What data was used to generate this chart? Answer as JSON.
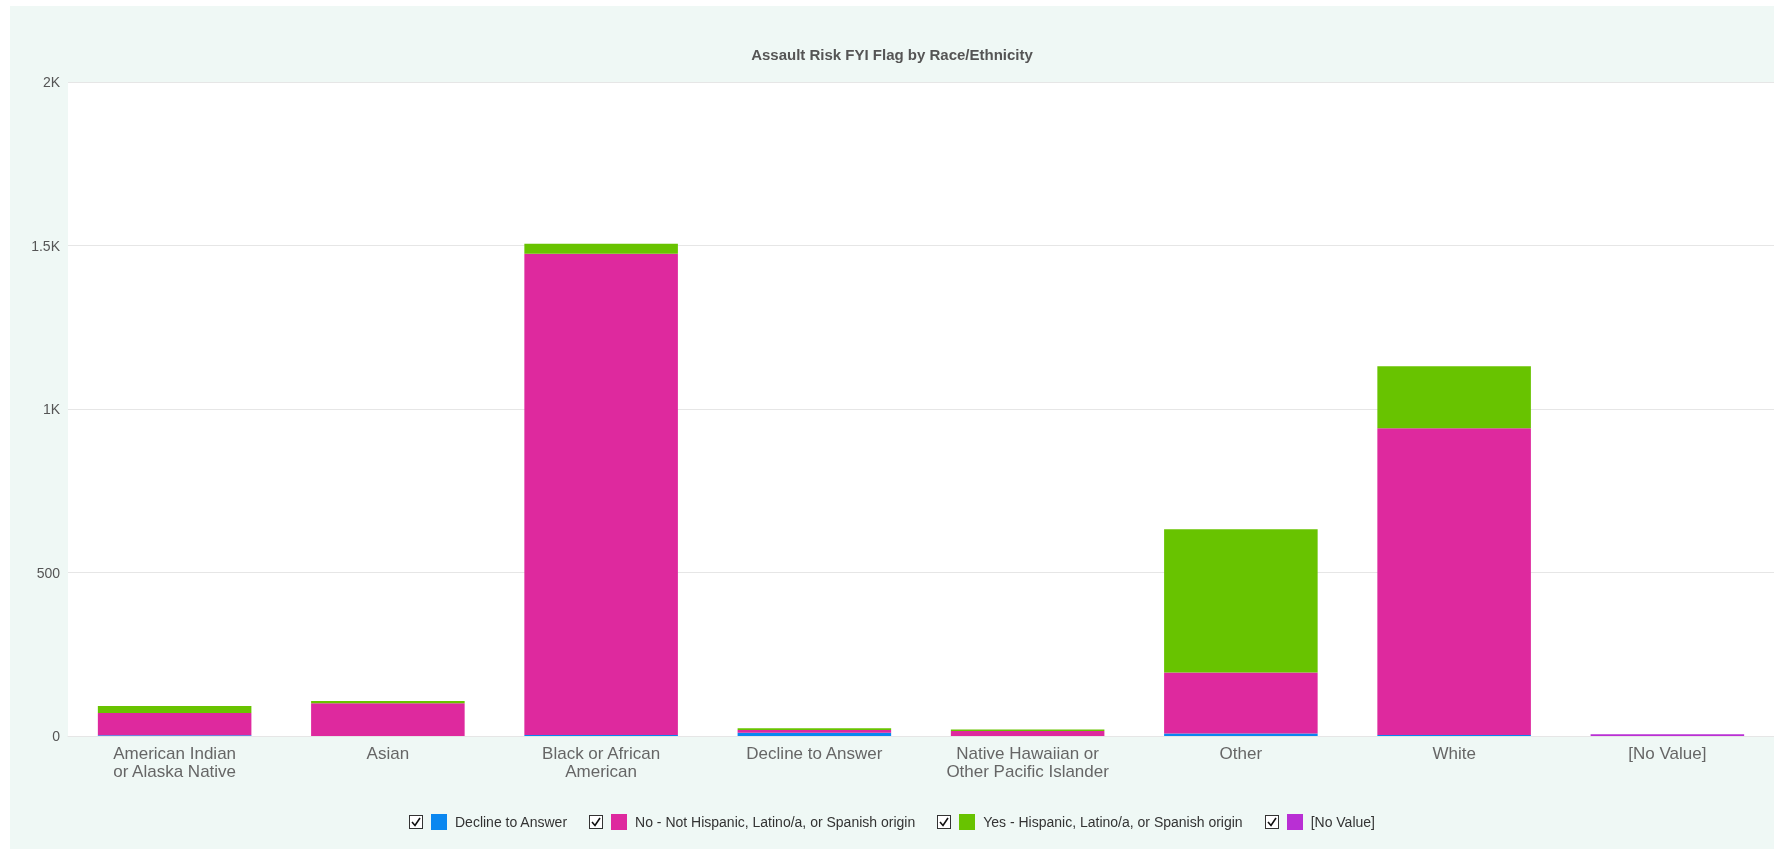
{
  "chart_data": {
    "type": "bar",
    "title": "Assault Risk FYI Flag by Race/Ethnicity",
    "stacked": true,
    "grid": "y",
    "legend": "bottom",
    "categories": [
      "American Indian\nor Alaska Native",
      "Asian",
      "Black or African\nAmerican",
      "Decline to Answer",
      "Native Hawaiian or\nOther Pacific Islander",
      "Other",
      "White",
      "[No Value]"
    ],
    "ylim": [
      0,
      2000
    ],
    "yticks": [
      0,
      500,
      {
        "value": 1000,
        "label": "1K"
      },
      {
        "value": 1500,
        "label": "1.5K"
      },
      {
        "value": 2000,
        "label": "2K"
      }
    ],
    "series": [
      {
        "name": "Decline to Answer",
        "color": "#0a87f0",
        "values": [
          2,
          0,
          3,
          10,
          0,
          8,
          3,
          0
        ]
      },
      {
        "name": "No - Not Hispanic, Latino/a, or Spanish origin",
        "color": "#de299e",
        "values": [
          68,
          100,
          1472,
          8,
          15,
          186,
          938,
          0
        ]
      },
      {
        "name": "Yes - Hispanic, Latino/a, or Spanish origin",
        "color": "#68c300",
        "values": [
          22,
          7,
          30,
          6,
          5,
          438,
          190,
          0
        ]
      },
      {
        "name": "[No Value]",
        "color": "#b92fd4",
        "values": [
          0,
          0,
          0,
          0,
          0,
          0,
          0,
          5
        ]
      }
    ]
  }
}
